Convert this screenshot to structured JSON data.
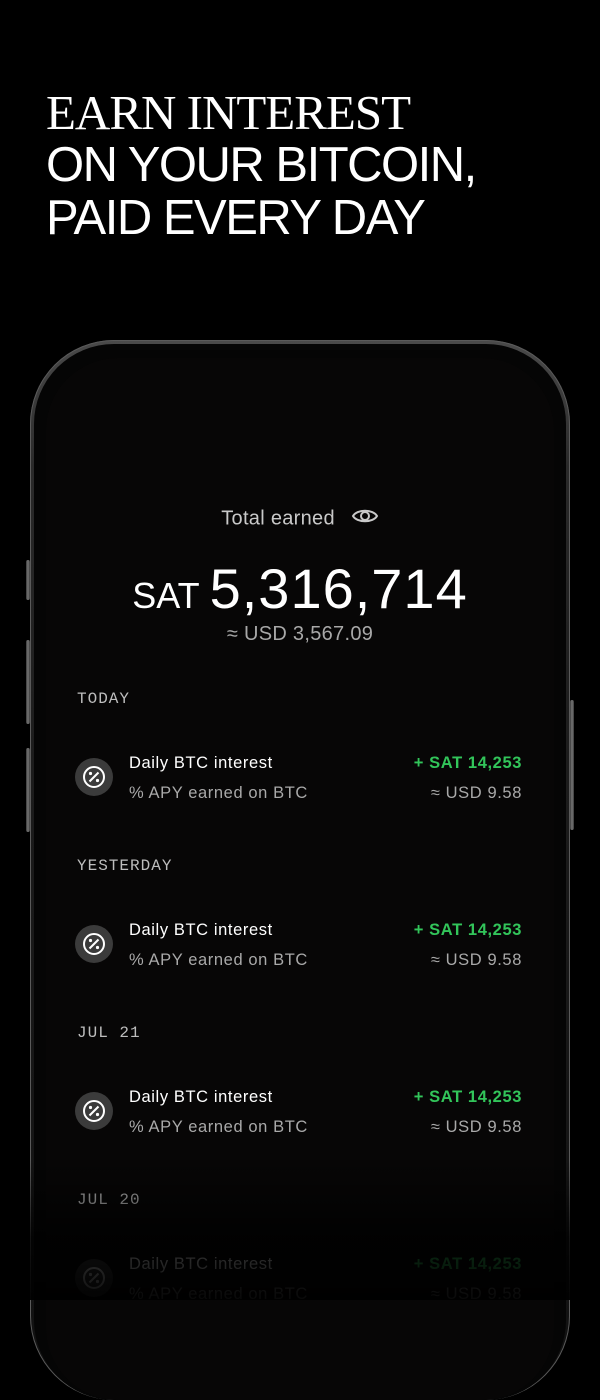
{
  "headline": {
    "line1": "EARN INTEREST",
    "line2": "ON YOUR BITCOIN,",
    "line3": "PAID EVERY DAY"
  },
  "summary": {
    "label": "Total earned",
    "currency": "SAT",
    "amount": "5,316,714",
    "usd": "≈ USD 3,567.09"
  },
  "sections": [
    {
      "title": "TODAY",
      "item": {
        "title": "Daily BTC interest",
        "subtitle": "% APY earned on BTC",
        "amount": "+ SAT 14,253",
        "usd": "≈ USD 9.58",
        "icon": "percent-icon"
      }
    },
    {
      "title": "YESTERDAY",
      "item": {
        "title": "Daily BTC interest",
        "subtitle": "% APY earned on BTC",
        "amount": "+ SAT 14,253",
        "usd": "≈ USD 9.58",
        "icon": "percent-icon"
      }
    },
    {
      "title": "JUL 21",
      "item": {
        "title": "Daily BTC interest",
        "subtitle": "% APY earned on BTC",
        "amount": "+ SAT 14,253",
        "usd": "≈ USD 9.58",
        "icon": "percent-icon"
      }
    },
    {
      "title": "JUL 20",
      "item": {
        "title": "Daily BTC interest",
        "subtitle": "% APY earned on BTC",
        "amount": "+ SAT 14,253",
        "usd": "≈ USD 9.58",
        "icon": "percent-icon"
      }
    }
  ],
  "colors": {
    "background": "#000000",
    "positive": "#32c55a",
    "muted": "#a9a9a9"
  }
}
